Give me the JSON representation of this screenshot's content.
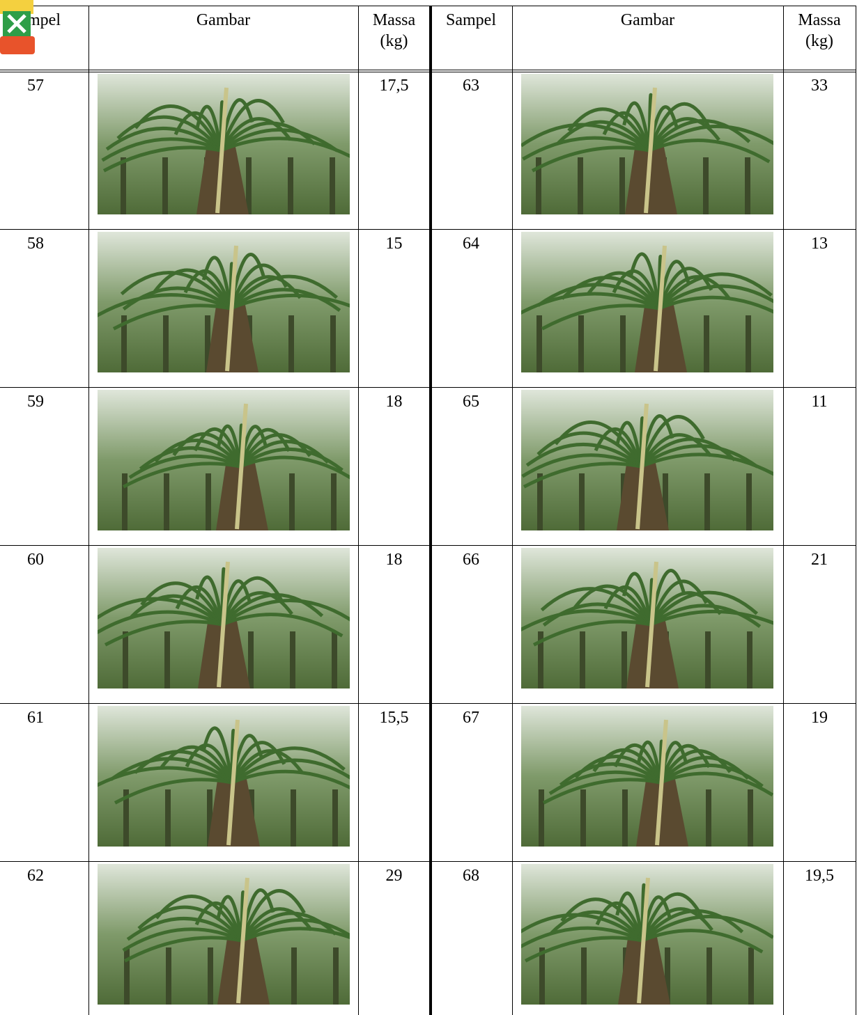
{
  "header": {
    "columns": [
      "Sampel",
      "Gambar",
      "Massa (kg)",
      "Sampel",
      "Gambar",
      "Massa (kg)"
    ]
  },
  "table": {
    "rows": [
      [
        "57",
        "17,5",
        "63",
        "33"
      ],
      [
        "58",
        "15",
        "64",
        "13"
      ],
      [
        "59",
        "18",
        "65",
        "11"
      ],
      [
        "60",
        "18",
        "66",
        "21"
      ],
      [
        "61",
        "15,5",
        "67",
        "19"
      ],
      [
        "62",
        "29",
        "68",
        "19,5"
      ]
    ]
  }
}
